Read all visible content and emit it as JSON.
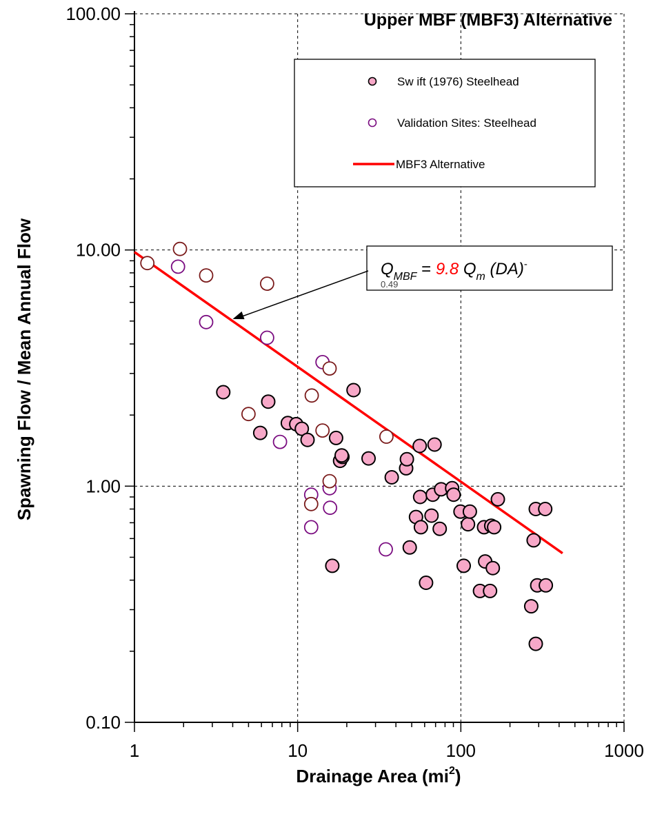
{
  "chart_data": {
    "type": "scatter",
    "title": "Upper MBF (MBF3) Alternative",
    "xlabel": "Drainage Area (mi",
    "xlabel_sup": "2",
    "xlabel_end": ")",
    "ylabel": "Spawning Flow / Mean Annual Flow",
    "x_scale": "log",
    "y_scale": "log",
    "xlim": [
      1,
      1000
    ],
    "ylim": [
      0.1,
      100
    ],
    "grid": true,
    "legend_position": "top-right",
    "x_ticks": [
      {
        "value": 1,
        "label": "1"
      },
      {
        "value": 10,
        "label": "10"
      },
      {
        "value": 100,
        "label": "100"
      },
      {
        "value": 1000,
        "label": "1000"
      }
    ],
    "y_ticks": [
      {
        "value": 0.1,
        "label": "0.10"
      },
      {
        "value": 1,
        "label": "1.00"
      },
      {
        "value": 10,
        "label": "10.00"
      },
      {
        "value": 100,
        "label": "100.00"
      }
    ],
    "series": [
      {
        "name": "Sw ift (1976) Steelhead",
        "marker": "filled-circle",
        "color": "#f7a8c8",
        "edge_color": "#000000",
        "points": [
          [
            3.5,
            2.5
          ],
          [
            5.9,
            1.68
          ],
          [
            6.6,
            2.28
          ],
          [
            8.7,
            1.85
          ],
          [
            9.8,
            1.83
          ],
          [
            10.6,
            1.75
          ],
          [
            11.5,
            1.57
          ],
          [
            17.2,
            1.6
          ],
          [
            18.2,
            1.28
          ],
          [
            18.8,
            1.33
          ],
          [
            18.6,
            1.35
          ],
          [
            22,
            2.55
          ],
          [
            27.2,
            1.31
          ],
          [
            37.7,
            1.09
          ],
          [
            46.2,
            1.19
          ],
          [
            46.7,
            1.3
          ],
          [
            56,
            1.48
          ],
          [
            69,
            1.5
          ],
          [
            16.3,
            0.46
          ],
          [
            48.6,
            0.55
          ],
          [
            53.1,
            0.74
          ],
          [
            56.3,
            0.9
          ],
          [
            56.9,
            0.67
          ],
          [
            61.2,
            0.39
          ],
          [
            66.1,
            0.75
          ],
          [
            67.3,
            0.92
          ],
          [
            74.2,
            0.66
          ],
          [
            75.7,
            0.97
          ],
          [
            88.4,
            0.98
          ],
          [
            90.3,
            0.92
          ],
          [
            99.5,
            0.78
          ],
          [
            104.1,
            0.46
          ],
          [
            110.6,
            0.69
          ],
          [
            113.6,
            0.78
          ],
          [
            131,
            0.36
          ],
          [
            138.7,
            0.67
          ],
          [
            141,
            0.48
          ],
          [
            151,
            0.36
          ],
          [
            153.5,
            0.68
          ],
          [
            157,
            0.45
          ],
          [
            160,
            0.67
          ],
          [
            168.5,
            0.88
          ],
          [
            270,
            0.31
          ],
          [
            279.3,
            0.59
          ],
          [
            287.8,
            0.8
          ],
          [
            293.8,
            0.38
          ],
          [
            287.8,
            0.215
          ],
          [
            329,
            0.8
          ],
          [
            331.8,
            0.38
          ]
        ]
      },
      {
        "name": "Validation Sites: Steelhead",
        "marker": "open-circle",
        "color": "#7a0c80",
        "points": [
          [
            1.85,
            8.5
          ],
          [
            2.75,
            4.95
          ],
          [
            6.5,
            4.25
          ],
          [
            7.8,
            1.54
          ],
          [
            12.1,
            0.92
          ],
          [
            12.1,
            0.67
          ],
          [
            14.2,
            3.35
          ],
          [
            15.7,
            0.98
          ],
          [
            15.8,
            0.81
          ],
          [
            34.7,
            0.54
          ]
        ]
      },
      {
        "name": "",
        "marker": "open-circle",
        "color": "#7a1a1a",
        "points": [
          [
            1.2,
            8.8
          ],
          [
            1.9,
            10.1
          ],
          [
            2.75,
            7.8
          ],
          [
            5,
            2.02
          ],
          [
            6.5,
            7.2
          ],
          [
            12.2,
            2.42
          ],
          [
            14.2,
            1.72
          ],
          [
            15.7,
            3.15
          ],
          [
            15.7,
            1.05
          ],
          [
            12.1,
            0.84
          ],
          [
            35,
            1.62
          ]
        ]
      },
      {
        "name": "MBF3 Alternative",
        "type": "line",
        "color": "#ff0000",
        "x": [
          1,
          420
        ],
        "y": [
          9.8,
          0.52
        ]
      }
    ],
    "annotation": {
      "Q": "Q",
      "sub_mbf": "MBF",
      "equals": " = ",
      "coef": "9.8",
      "Qm": " Q",
      "sub_m": "m",
      "da": " (DA)",
      "exp_sign": "-",
      "exp_value": "0.49",
      "coef_color": "#ff0000",
      "points_to": [
        4,
        5.1
      ]
    }
  }
}
